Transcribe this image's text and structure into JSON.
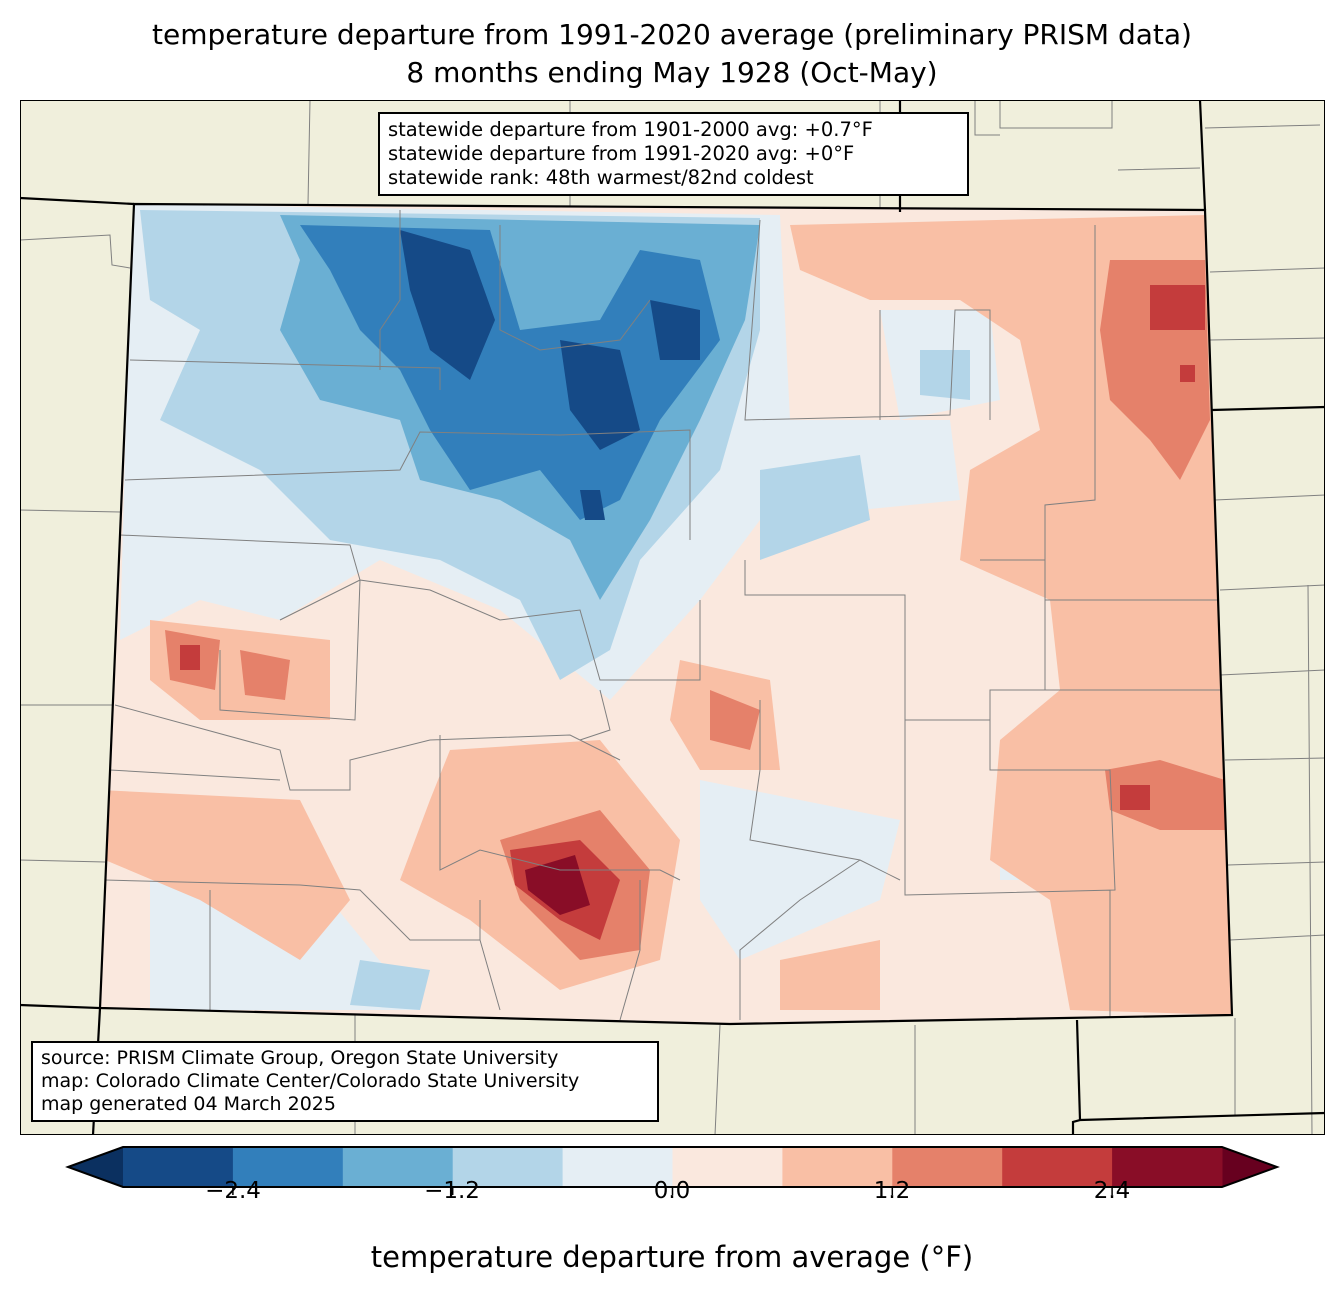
{
  "title": {
    "line1": "temperature departure from 1991-2020 average (preliminary PRISM data)",
    "line2": "8 months ending May 1928 (Oct-May)"
  },
  "stats_box": {
    "line1": "statewide departure from 1901-2000 avg: +0.7°F",
    "line2": "statewide departure from 1991-2020 avg: +0°F",
    "line3": "statewide rank: 48th warmest/82nd coldest"
  },
  "source_box": {
    "line1": "source: PRISM Climate Group, Oregon State University",
    "line2": "map: Colorado Climate Center/Colorado State University",
    "line3": "map generated 04 March 2025"
  },
  "colorbar": {
    "label": "temperature departure from average (°F)",
    "ticks": [
      "−2.4",
      "−1.2",
      "0.0",
      "1.2",
      "2.4"
    ],
    "tick_values": [
      -2.4,
      -1.2,
      0.0,
      1.2,
      2.4
    ],
    "bounds": [
      -3,
      3
    ],
    "step": 0.6,
    "under_color": "#0b3060",
    "over_color": "#67001f",
    "colors": [
      "#154a87",
      "#327fbb",
      "#6aafd3",
      "#b3d5e8",
      "#e5eef4",
      "#fae8de",
      "#f9bfa5",
      "#e5816a",
      "#c43c3c",
      "#890d27"
    ]
  },
  "map_colors": {
    "land": "#f0efdc",
    "state_border": "#000000",
    "county_border": "#808080"
  }
}
